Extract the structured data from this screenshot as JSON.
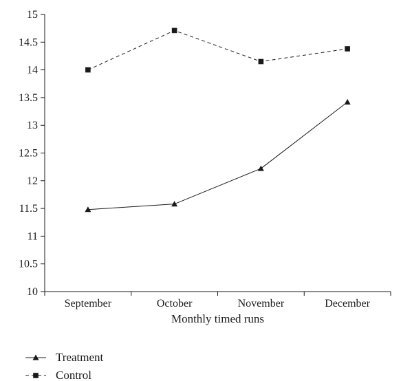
{
  "chart_data": {
    "type": "line",
    "title": "",
    "xlabel": "Monthly timed runs",
    "ylabel": "",
    "categories": [
      "September",
      "October",
      "November",
      "December"
    ],
    "ylim": [
      10,
      15
    ],
    "yticks": [
      "10",
      "10.5",
      "11",
      "11.5",
      "12",
      "12.5",
      "13",
      "13.5",
      "14",
      "14.5",
      "15"
    ],
    "grid": false,
    "legend_position": "bottom-left",
    "series": [
      {
        "name": "Treatment",
        "values": [
          11.48,
          11.58,
          12.22,
          13.42
        ],
        "marker": "triangle",
        "line_style": "solid",
        "color": "#1a1a1a"
      },
      {
        "name": "Control",
        "values": [
          14.0,
          14.71,
          14.15,
          14.38
        ],
        "marker": "square",
        "line_style": "dashed",
        "color": "#1a1a1a"
      }
    ]
  }
}
